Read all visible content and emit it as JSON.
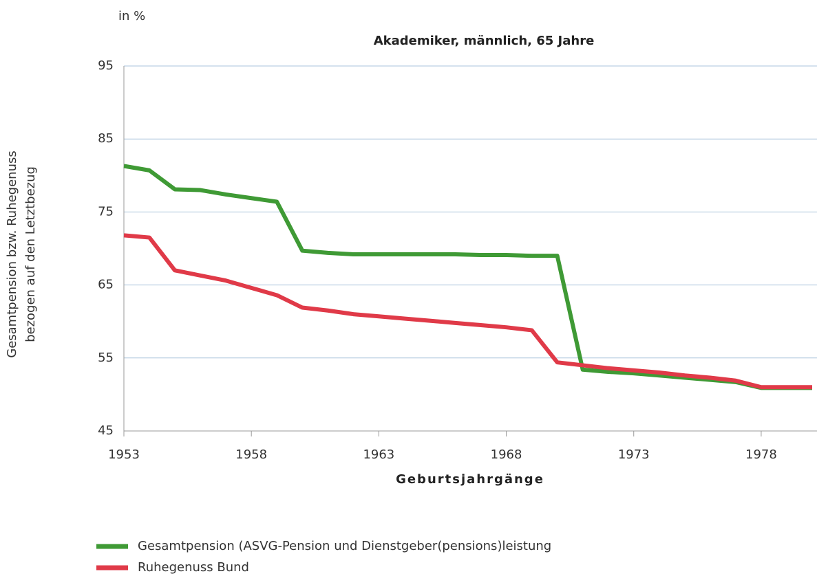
{
  "chart_data": {
    "type": "line",
    "title": "Akademiker, männlich, 65 Jahre",
    "unit_label": "in %",
    "y_label": [
      "Gesamtpension bzw. Ruhegenuss",
      "bezogen auf den Letztbezug"
    ],
    "x_label": "Geburtsjahrgänge",
    "x": [
      1953,
      1954,
      1955,
      1956,
      1957,
      1958,
      1959,
      1960,
      1961,
      1962,
      1963,
      1964,
      1965,
      1966,
      1967,
      1968,
      1969,
      1970,
      1971,
      1972,
      1973,
      1974,
      1975,
      1976,
      1977,
      1978,
      1979,
      1980
    ],
    "series": [
      {
        "name": "Gesamtpension (ASVG-Pension und Dienstgeber(pensions)leistung",
        "color": "#3f9a35",
        "values": [
          81.3,
          80.7,
          78.1,
          78.0,
          77.4,
          76.9,
          76.4,
          69.7,
          69.4,
          69.2,
          69.2,
          69.2,
          69.2,
          69.2,
          69.1,
          69.1,
          69.0,
          69.0,
          53.4,
          53.1,
          52.9,
          52.6,
          52.3,
          52.0,
          51.7,
          50.9,
          50.9,
          50.9
        ]
      },
      {
        "name": "Ruhegenuss Bund",
        "color": "#e03a48",
        "values": [
          71.8,
          71.5,
          67.0,
          66.3,
          65.6,
          64.6,
          63.6,
          61.9,
          61.5,
          61.0,
          60.7,
          60.4,
          60.1,
          59.8,
          59.5,
          59.2,
          58.8,
          54.4,
          54.0,
          53.6,
          53.3,
          53.0,
          52.6,
          52.3,
          51.9,
          51.0,
          51.0,
          51.0
        ]
      }
    ],
    "xlim": [
      1953,
      1980
    ],
    "xticks": [
      1953,
      1958,
      1963,
      1968,
      1973,
      1978
    ],
    "ylim": [
      45,
      95
    ],
    "yticks": [
      45,
      55,
      65,
      75,
      85,
      95
    ],
    "grid": true
  }
}
